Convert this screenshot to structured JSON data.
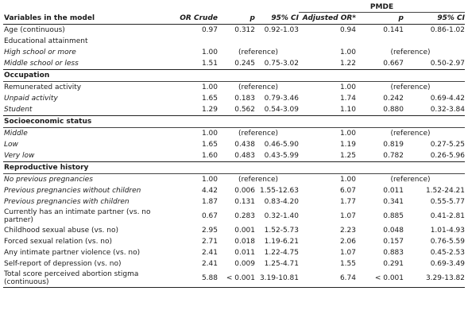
{
  "header": {
    "group_label": "PMDE",
    "columns": [
      "Variables in the model",
      "OR Crude",
      "p",
      "95% CI",
      "Adjusted OR*",
      "p",
      "95% CI"
    ]
  },
  "rows": [
    {
      "type": "row",
      "label": "Age (continuous)",
      "italic": false,
      "or_crude": "0.97",
      "p1": "0.312",
      "ci1": "0.92-1.03",
      "or_adj": "0.94",
      "p2": "0.141",
      "ci2": "0.86-1.02"
    },
    {
      "type": "row",
      "label": "Educational attainment",
      "italic": false,
      "or_crude": "",
      "p1": "",
      "ci1": "",
      "or_adj": "",
      "p2": "",
      "ci2": ""
    },
    {
      "type": "ref",
      "label": "High school or more",
      "italic": true,
      "or_crude": "1.00",
      "ref1": "(reference)",
      "or_adj": "1.00",
      "ref2": "(reference)"
    },
    {
      "type": "row",
      "label": "Middle school or less",
      "italic": true,
      "or_crude": "1.51",
      "p1": "0.245",
      "ci1": "0.75-3.02",
      "or_adj": "1.22",
      "p2": "0.667",
      "ci2": "0.50-2.97"
    },
    {
      "type": "section",
      "label": "Occupation"
    },
    {
      "type": "ref",
      "label": "Remunerated activity",
      "italic": false,
      "or_crude": "1.00",
      "ref1": "(reference)",
      "or_adj": "1.00",
      "ref2": "(reference)"
    },
    {
      "type": "row",
      "label": "Unpaid activity",
      "italic": true,
      "or_crude": "1.65",
      "p1": "0.183",
      "ci1": "0.79-3.46",
      "or_adj": "1.74",
      "p2": "0.242",
      "ci2": "0.69-4.42"
    },
    {
      "type": "row",
      "label": "Student",
      "italic": true,
      "or_crude": "1.29",
      "p1": "0.562",
      "ci1": "0.54-3.09",
      "or_adj": "1.10",
      "p2": "0.880",
      "ci2": "0.32-3.84"
    },
    {
      "type": "section",
      "label": "Socioeconomic status"
    },
    {
      "type": "ref",
      "label": "Middle",
      "italic": true,
      "or_crude": "1.00",
      "ref1": "(reference)",
      "or_adj": "1.00",
      "ref2": "(reference)"
    },
    {
      "type": "row",
      "label": "Low",
      "italic": true,
      "or_crude": "1.65",
      "p1": "0.438",
      "ci1": "0.46-5.90",
      "or_adj": "1.19",
      "p2": "0.819",
      "ci2": "0.27-5.25"
    },
    {
      "type": "row",
      "label": "Very low",
      "italic": true,
      "or_crude": "1.60",
      "p1": "0.483",
      "ci1": "0.43-5.99",
      "or_adj": "1.25",
      "p2": "0.782",
      "ci2": "0.26-5.96"
    },
    {
      "type": "section",
      "label": "Reproductive history"
    },
    {
      "type": "ref",
      "label": "No previous pregnancies",
      "italic": true,
      "or_crude": "1.00",
      "ref1": "(reference)",
      "or_adj": "1.00",
      "ref2": "(reference)"
    },
    {
      "type": "row",
      "label": "Previous pregnancies without children",
      "italic": true,
      "or_crude": "4.42",
      "p1": "0.006",
      "ci1": "1.55-12.63",
      "or_adj": "6.07",
      "p2": "0.011",
      "ci2": "1.52-24.21"
    },
    {
      "type": "row",
      "label": "Previous pregnancies with children",
      "italic": true,
      "or_crude": "1.87",
      "p1": "0.131",
      "ci1": "0.83-4.20",
      "or_adj": "1.77",
      "p2": "0.341",
      "ci2": "0.55-5.77"
    },
    {
      "type": "row2",
      "label": "Currently has an intimate partner (vs. no partner)",
      "italic": false,
      "or_crude": "0.67",
      "p1": "0.283",
      "ci1": "0.32-1.40",
      "or_adj": "1.07",
      "p2": "0.885",
      "ci2": "0.41-2.81"
    },
    {
      "type": "row",
      "label": "Childhood sexual abuse (vs. no)",
      "italic": false,
      "or_crude": "2.95",
      "p1": "0.001",
      "ci1": "1.52-5.73",
      "or_adj": "2.23",
      "p2": "0.048",
      "ci2": "1.01-4.93"
    },
    {
      "type": "row",
      "label": "Forced sexual relation (vs. no)",
      "italic": false,
      "or_crude": "2.71",
      "p1": "0.018",
      "ci1": "1.19-6.21",
      "or_adj": "2.06",
      "p2": "0.157",
      "ci2": "0.76-5.59"
    },
    {
      "type": "row",
      "label": "Any intimate partner violence (vs. no)",
      "italic": false,
      "or_crude": "2.41",
      "p1": "0.011",
      "ci1": "1.22-4.75",
      "or_adj": "1.07",
      "p2": "0.883",
      "ci2": "0.45-2.53"
    },
    {
      "type": "row",
      "label": "Self-report of depression (vs. no)",
      "italic": false,
      "or_crude": "2.41",
      "p1": "0.009",
      "ci1": "1.25-4.71",
      "or_adj": "1.55",
      "p2": "0.291",
      "ci2": "0.69-3.49"
    },
    {
      "type": "row2",
      "label": "Total score perceived abortion stigma (continuous)",
      "italic": false,
      "or_crude": "5.88",
      "p1": "< 0.001",
      "ci1": "3.19-10.81",
      "or_adj": "6.74",
      "p2": "< 0.001",
      "ci2": "3.29-13.82"
    }
  ]
}
